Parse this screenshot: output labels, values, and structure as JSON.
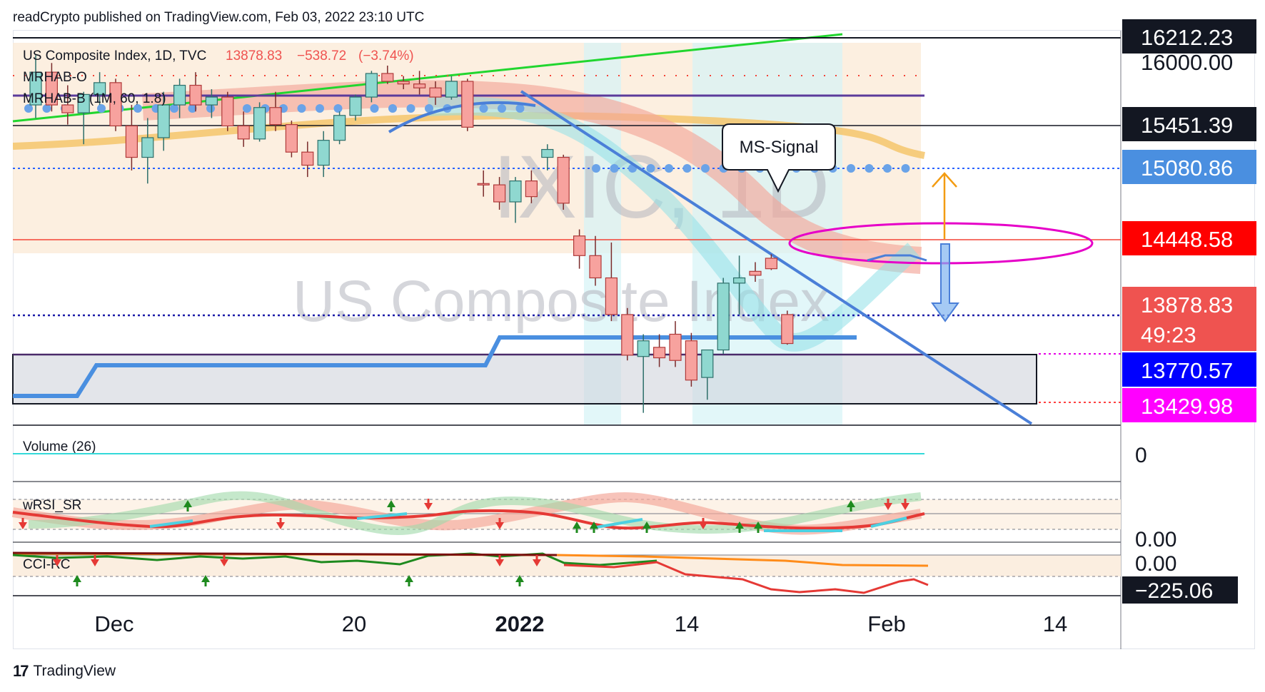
{
  "header": {
    "published_by": "readCrypto published on TradingView.com, Feb 03, 2022 23:10 UTC"
  },
  "footer": {
    "brand": "TradingView",
    "brand_mark": "17"
  },
  "colors": {
    "up": "#26a69a",
    "down": "#ef5350",
    "accent_blue": "#4a8fe0",
    "green_trend": "#2ecc40",
    "magenta": "#e100e6",
    "orange": "#f39c12"
  },
  "chart_data": {
    "type": "candlestick",
    "symbol": "US Composite Index, 1D, TVC",
    "last_close": "13878.83",
    "change": "−538.72",
    "change_pct": "(−3.74%)",
    "watermark_symbol": "IXIC, 1D",
    "watermark_name": "US Composite Index",
    "indicator_labels": [
      "MRHAB-O",
      "MRHAB-B (1M, 60, 1.8)"
    ],
    "callout": "MS-Signal",
    "x_ticks": [
      "Dec",
      "20",
      "2022",
      "14",
      "Feb",
      "14"
    ],
    "price_labels": [
      {
        "value": "16212.23",
        "bg": "#131722",
        "fg": "#ffffff"
      },
      {
        "value": "16000.00",
        "bg": "none",
        "fg": "#131722"
      },
      {
        "value": "15451.39",
        "bg": "#131722",
        "fg": "#ffffff"
      },
      {
        "value": "15080.86",
        "bg": "#4a8fe0",
        "fg": "#ffffff"
      },
      {
        "value": "14448.58",
        "bg": "#ff0000",
        "fg": "#ffffff"
      },
      {
        "value": "13878.83",
        "bg": "#ef5350",
        "fg": "#ffffff"
      },
      {
        "value": "49:23",
        "bg": "#ef5350",
        "fg": "#ffffff"
      },
      {
        "value": "13770.57",
        "bg": "#0000ff",
        "fg": "#ffffff"
      },
      {
        "value": "13429.98",
        "bg": "#ff00ff",
        "fg": "#ffffff"
      }
    ],
    "ylim": [
      13100,
      16400
    ],
    "candles": [
      {
        "o": 15700,
        "h": 16080,
        "l": 15600,
        "c": 15950
      },
      {
        "o": 15950,
        "h": 16020,
        "l": 15650,
        "c": 15700
      },
      {
        "o": 15700,
        "h": 15850,
        "l": 15550,
        "c": 15640
      },
      {
        "o": 15640,
        "h": 15800,
        "l": 15400,
        "c": 15780
      },
      {
        "o": 15780,
        "h": 15950,
        "l": 15700,
        "c": 15870
      },
      {
        "o": 15870,
        "h": 15900,
        "l": 15500,
        "c": 15540
      },
      {
        "o": 15540,
        "h": 15700,
        "l": 15200,
        "c": 15300
      },
      {
        "o": 15300,
        "h": 15600,
        "l": 15100,
        "c": 15450
      },
      {
        "o": 15450,
        "h": 15800,
        "l": 15350,
        "c": 15700
      },
      {
        "o": 15700,
        "h": 15900,
        "l": 15600,
        "c": 15850
      },
      {
        "o": 15850,
        "h": 15950,
        "l": 15650,
        "c": 15700
      },
      {
        "o": 15700,
        "h": 15820,
        "l": 15600,
        "c": 15760
      },
      {
        "o": 15760,
        "h": 15800,
        "l": 15500,
        "c": 15540
      },
      {
        "o": 15540,
        "h": 15650,
        "l": 15380,
        "c": 15440
      },
      {
        "o": 15440,
        "h": 15720,
        "l": 15420,
        "c": 15680
      },
      {
        "o": 15680,
        "h": 15800,
        "l": 15500,
        "c": 15550
      },
      {
        "o": 15550,
        "h": 15580,
        "l": 15300,
        "c": 15340
      },
      {
        "o": 15340,
        "h": 15420,
        "l": 15150,
        "c": 15240
      },
      {
        "o": 15240,
        "h": 15500,
        "l": 15150,
        "c": 15430
      },
      {
        "o": 15430,
        "h": 15650,
        "l": 15400,
        "c": 15620
      },
      {
        "o": 15620,
        "h": 15780,
        "l": 15580,
        "c": 15760
      },
      {
        "o": 15760,
        "h": 15960,
        "l": 15720,
        "c": 15940
      },
      {
        "o": 15940,
        "h": 16000,
        "l": 15860,
        "c": 15880
      },
      {
        "o": 15880,
        "h": 15920,
        "l": 15820,
        "c": 15860
      },
      {
        "o": 15860,
        "h": 15960,
        "l": 15780,
        "c": 15830
      },
      {
        "o": 15830,
        "h": 15880,
        "l": 15700,
        "c": 15760
      },
      {
        "o": 15760,
        "h": 15920,
        "l": 15740,
        "c": 15880
      },
      {
        "o": 15880,
        "h": 15900,
        "l": 15500,
        "c": 15530
      },
      {
        "o": 15100,
        "h": 15200,
        "l": 15000,
        "c": 15090
      },
      {
        "o": 15090,
        "h": 15150,
        "l": 14900,
        "c": 14960
      },
      {
        "o": 14960,
        "h": 15150,
        "l": 14800,
        "c": 15120
      },
      {
        "o": 15120,
        "h": 15200,
        "l": 14950,
        "c": 15000
      },
      {
        "o": 15300,
        "h": 15400,
        "l": 15200,
        "c": 15360
      },
      {
        "o": 15300,
        "h": 15320,
        "l": 14900,
        "c": 14950
      },
      {
        "o": 14700,
        "h": 14750,
        "l": 14450,
        "c": 14550
      },
      {
        "o": 14550,
        "h": 14700,
        "l": 14320,
        "c": 14380
      },
      {
        "o": 14380,
        "h": 14650,
        "l": 14050,
        "c": 14100
      },
      {
        "o": 14100,
        "h": 14150,
        "l": 13750,
        "c": 13790
      },
      {
        "o": 13780,
        "h": 13950,
        "l": 13350,
        "c": 13900
      },
      {
        "o": 13850,
        "h": 13950,
        "l": 13700,
        "c": 13770
      },
      {
        "o": 13950,
        "h": 14050,
        "l": 13700,
        "c": 13750
      },
      {
        "o": 13900,
        "h": 13960,
        "l": 13550,
        "c": 13600
      },
      {
        "o": 13620,
        "h": 13800,
        "l": 13450,
        "c": 13830
      },
      {
        "o": 13830,
        "h": 14380,
        "l": 13800,
        "c": 14340
      },
      {
        "o": 14340,
        "h": 14550,
        "l": 14100,
        "c": 14380
      },
      {
        "o": 14430,
        "h": 14500,
        "l": 14350,
        "c": 14400
      },
      {
        "o": 14530,
        "h": 14560,
        "l": 14440,
        "c": 14450
      },
      {
        "o": 14100,
        "h": 14130,
        "l": 13870,
        "c": 13879
      }
    ],
    "sub_panels": [
      {
        "name": "Volume (26)",
        "value_label": "0"
      },
      {
        "name": "wRSI_SR",
        "value_label": "0.00"
      },
      {
        "name": "CCI-RC",
        "value_labels": [
          "0.00",
          "−225.06"
        ]
      }
    ]
  }
}
